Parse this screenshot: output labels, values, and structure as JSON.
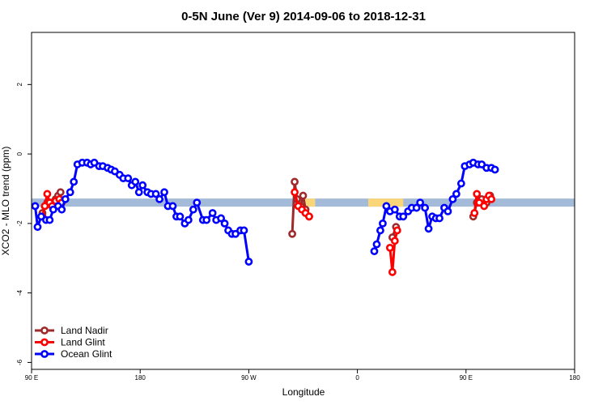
{
  "chart_data": {
    "type": "line",
    "title": "0-5N June (Ver 9)   2014-09-06 to 2018-12-31",
    "xlabel": "Longitude",
    "ylabel": "XCO2 - MLO trend (ppm)",
    "xlim": [
      90,
      450
    ],
    "ylim": [
      -6.2,
      3.5
    ],
    "x_ticks": [
      {
        "value": 90,
        "label": "90 E"
      },
      {
        "value": 180,
        "label": "180"
      },
      {
        "value": 270,
        "label": "90 W"
      },
      {
        "value": 360,
        "label": "0"
      },
      {
        "value": 450,
        "label": "90 E"
      },
      {
        "value": 540,
        "label": "180"
      }
    ],
    "y_ticks": [
      {
        "value": 2,
        "label": "2"
      },
      {
        "value": 0,
        "label": "0"
      },
      {
        "value": -2,
        "label": "-2"
      },
      {
        "value": -4,
        "label": "-4"
      },
      {
        "value": -6,
        "label": "-6"
      }
    ],
    "band": {
      "y": -1.4,
      "color": "#a3bbd9",
      "land_color": "#fbd679",
      "land_segments": [
        [
          310,
          325
        ],
        [
          369,
          398
        ]
      ]
    },
    "legend_position": "bottom-left",
    "series": [
      {
        "name": "Land Nadir",
        "color": "#9e2a2b",
        "segments": [
          [
            [
              99,
              -1.7
            ],
            [
              101,
              -1.5
            ],
            [
              103,
              -1.4
            ],
            [
              107,
              -1.4
            ],
            [
              110,
              -1.3
            ],
            [
              112,
              -1.2
            ],
            [
              114,
              -1.1
            ]
          ],
          [
            [
              306,
              -2.3
            ],
            [
              308,
              -0.8
            ],
            [
              310,
              -1.3
            ],
            [
              313,
              -1.5
            ],
            [
              315,
              -1.2
            ],
            [
              317,
              -1.6
            ],
            [
              320,
              -1.8
            ]
          ],
          [
            [
              389,
              -2.4
            ],
            [
              392,
              -2.1
            ]
          ],
          [
            [
              456,
              -1.8
            ],
            [
              459,
              -1.4
            ],
            [
              463,
              -1.3
            ],
            [
              467,
              -1.4
            ],
            [
              470,
              -1.2
            ]
          ]
        ]
      },
      {
        "name": "Land Glint",
        "color": "#ff0000",
        "segments": [
          [
            [
              99,
              -1.8
            ],
            [
              101,
              -1.5
            ],
            [
              103,
              -1.15
            ],
            [
              105,
              -1.4
            ],
            [
              107,
              -1.5
            ],
            [
              110,
              -1.35
            ],
            [
              113,
              -1.3
            ],
            [
              115,
              -1.4
            ]
          ],
          [
            [
              308,
              -1.1
            ],
            [
              311,
              -1.5
            ],
            [
              314,
              -1.6
            ],
            [
              317,
              -1.7
            ],
            [
              320,
              -1.8
            ]
          ],
          [
            [
              387,
              -2.7
            ],
            [
              389,
              -3.4
            ],
            [
              391,
              -2.5
            ],
            [
              393,
              -2.2
            ]
          ],
          [
            [
              457,
              -1.7
            ],
            [
              459,
              -1.15
            ],
            [
              461,
              -1.4
            ],
            [
              465,
              -1.5
            ],
            [
              467,
              -1.3
            ],
            [
              469,
              -1.2
            ],
            [
              471,
              -1.3
            ]
          ]
        ]
      },
      {
        "name": "Ocean Glint",
        "color": "#0000ff",
        "segments": [
          [
            [
              93,
              -1.5
            ],
            [
              95,
              -2.1
            ],
            [
              98,
              -1.8
            ],
            [
              102,
              -1.9
            ],
            [
              105,
              -1.9
            ],
            [
              108,
              -1.6
            ],
            [
              112,
              -1.5
            ],
            [
              115,
              -1.6
            ],
            [
              118,
              -1.3
            ],
            [
              122,
              -1.1
            ],
            [
              125,
              -0.8
            ],
            [
              128,
              -0.3
            ],
            [
              132,
              -0.25
            ],
            [
              136,
              -0.25
            ],
            [
              139,
              -0.3
            ],
            [
              142,
              -0.25
            ],
            [
              146,
              -0.35
            ],
            [
              149,
              -0.35
            ],
            [
              153,
              -0.4
            ],
            [
              156,
              -0.45
            ],
            [
              159,
              -0.5
            ],
            [
              163,
              -0.6
            ],
            [
              166,
              -0.7
            ],
            [
              170,
              -0.7
            ],
            [
              173,
              -0.9
            ],
            [
              176,
              -0.8
            ],
            [
              179,
              -1.1
            ],
            [
              182,
              -0.9
            ],
            [
              186,
              -1.1
            ],
            [
              189,
              -1.15
            ],
            [
              193,
              -1.15
            ],
            [
              196,
              -1.3
            ],
            [
              200,
              -1.1
            ],
            [
              203,
              -1.5
            ],
            [
              207,
              -1.5
            ],
            [
              210,
              -1.8
            ],
            [
              213,
              -1.8
            ],
            [
              217,
              -2.0
            ],
            [
              220,
              -1.9
            ],
            [
              224,
              -1.6
            ],
            [
              227,
              -1.4
            ],
            [
              232,
              -1.9
            ],
            [
              235,
              -1.9
            ],
            [
              240,
              -1.7
            ],
            [
              243,
              -1.9
            ],
            [
              247,
              -1.85
            ],
            [
              250,
              -2.0
            ],
            [
              253,
              -2.2
            ],
            [
              256,
              -2.3
            ],
            [
              259,
              -2.3
            ],
            [
              263,
              -2.2
            ],
            [
              266,
              -2.2
            ],
            [
              270,
              -3.1
            ]
          ],
          [
            [
              374,
              -2.8
            ],
            [
              376,
              -2.6
            ],
            [
              379,
              -2.2
            ],
            [
              381,
              -2.0
            ],
            [
              384,
              -1.5
            ],
            [
              387,
              -1.65
            ],
            [
              391,
              -1.6
            ],
            [
              395,
              -1.8
            ],
            [
              398,
              -1.8
            ],
            [
              402,
              -1.65
            ],
            [
              405,
              -1.55
            ],
            [
              409,
              -1.55
            ],
            [
              412,
              -1.4
            ],
            [
              416,
              -1.55
            ],
            [
              419,
              -2.15
            ],
            [
              422,
              -1.8
            ],
            [
              425,
              -1.85
            ],
            [
              428,
              -1.85
            ],
            [
              432,
              -1.55
            ],
            [
              435,
              -1.65
            ],
            [
              439,
              -1.3
            ],
            [
              442,
              -1.15
            ],
            [
              446,
              -0.85
            ],
            [
              449,
              -0.35
            ],
            [
              453,
              -0.3
            ],
            [
              456,
              -0.25
            ],
            [
              460,
              -0.3
            ],
            [
              463,
              -0.3
            ],
            [
              467,
              -0.4
            ],
            [
              471,
              -0.4
            ],
            [
              474,
              -0.45
            ]
          ]
        ]
      }
    ]
  }
}
